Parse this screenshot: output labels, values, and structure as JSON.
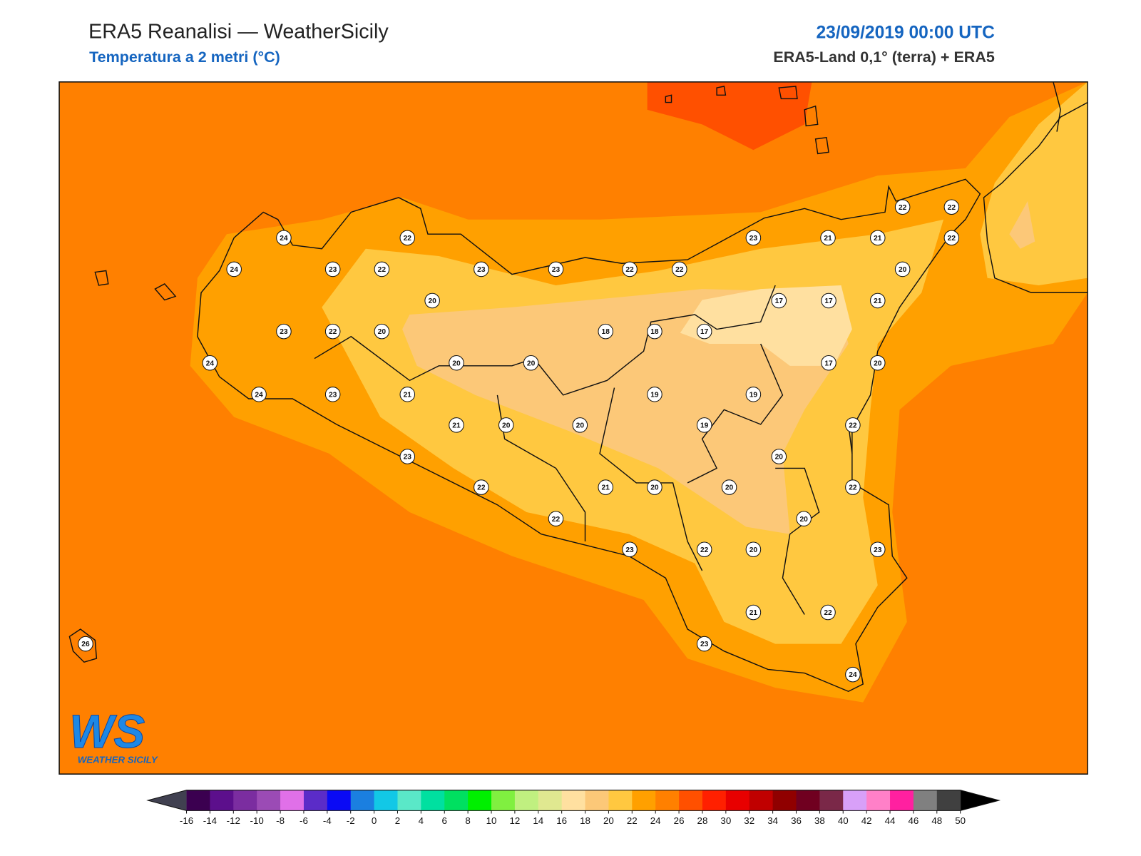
{
  "header": {
    "title": "ERA5 Reanalisi — WeatherSicily",
    "subtitle": "Temperatura a 2 metri (°C)",
    "datetime": "23/09/2019 00:00 UTC",
    "source": "ERA5-Land 0,1° (terra) + ERA5"
  },
  "stations": [
    24,
    22,
    23,
    21,
    21,
    22,
    22,
    22,
    24,
    23,
    22,
    23,
    23,
    22,
    22,
    20,
    20,
    17,
    17,
    21,
    23,
    22,
    20,
    18,
    18,
    17,
    24,
    20,
    20,
    17,
    20,
    24,
    23,
    21,
    19,
    19,
    21,
    20,
    20,
    19,
    22,
    23,
    20,
    22,
    21,
    20,
    20,
    22,
    20,
    22,
    23,
    22,
    20,
    23,
    21,
    22,
    23,
    26,
    24
  ],
  "colorbar": {
    "ticks": [
      -16,
      -14,
      -12,
      -10,
      -8,
      -6,
      -4,
      -2,
      0,
      2,
      4,
      6,
      8,
      10,
      12,
      14,
      16,
      18,
      20,
      22,
      24,
      26,
      28,
      30,
      32,
      34,
      36,
      38,
      40,
      42,
      44,
      46,
      48,
      50
    ],
    "colors": [
      "#3b0050",
      "#5c0f8c",
      "#7b2da0",
      "#9b4bb5",
      "#e070e8",
      "#5b2cc8",
      "#0a0af5",
      "#1b7fe0",
      "#12c8e6",
      "#5ae8c8",
      "#00e0a0",
      "#00e060",
      "#00f000",
      "#80f040",
      "#c0f080",
      "#e0e890",
      "#ffe0a0",
      "#fcc878",
      "#ffc840",
      "#ffa000",
      "#ff8000",
      "#ff5000",
      "#ff2000",
      "#e80000",
      "#c00000",
      "#900000",
      "#700020",
      "#7a2848",
      "#d8a0f8",
      "#ff80c8",
      "#ff20a0",
      "#808080",
      "#404040"
    ],
    "under_color": "#404050",
    "over_color": "#000000"
  },
  "logo": {
    "mark": "WS",
    "text": "WEATHER SICILY"
  }
}
